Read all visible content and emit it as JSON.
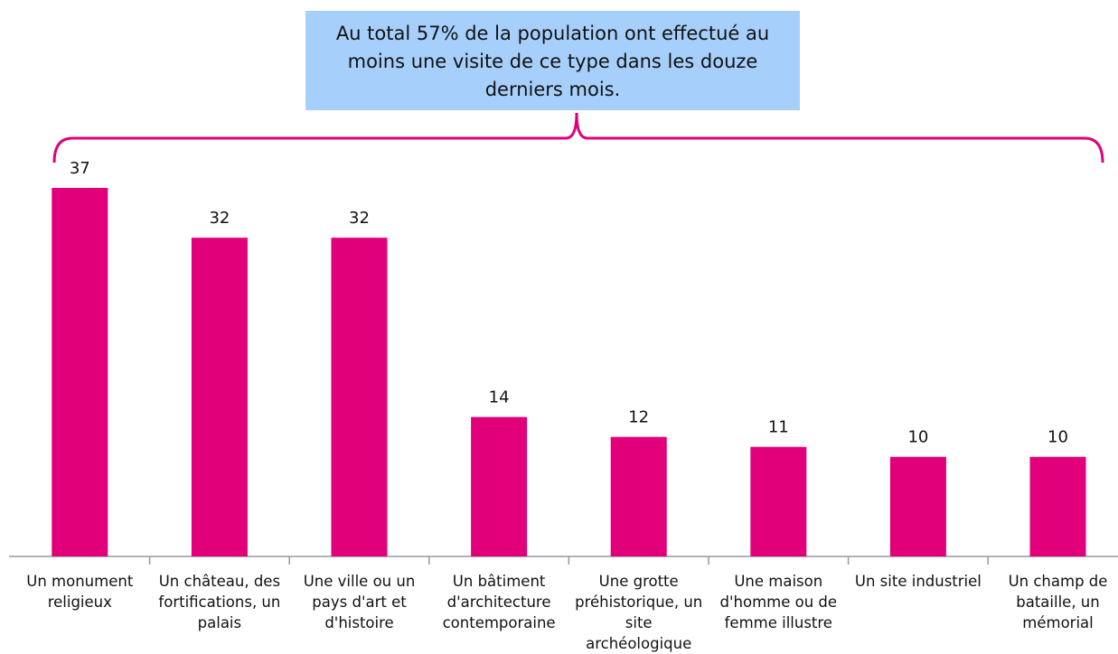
{
  "chart_data": {
    "type": "bar",
    "annotation": "Au total 57% de la population ont effectué au moins une visite de ce type dans les douze derniers mois.",
    "categories": [
      "Un monument religieux",
      "Un château, des fortifications, un palais",
      "Une ville ou un pays d'art et d'histoire",
      "Un bâtiment d'architecture contemporaine",
      "Une grotte préhistorique, un site archéologique",
      "Une maison d'homme ou de femme illustre",
      "Un site industriel",
      "Un champ de bataille, un mémorial"
    ],
    "values": [
      37,
      32,
      32,
      14,
      12,
      11,
      10,
      10
    ],
    "color": "#e2007a"
  }
}
